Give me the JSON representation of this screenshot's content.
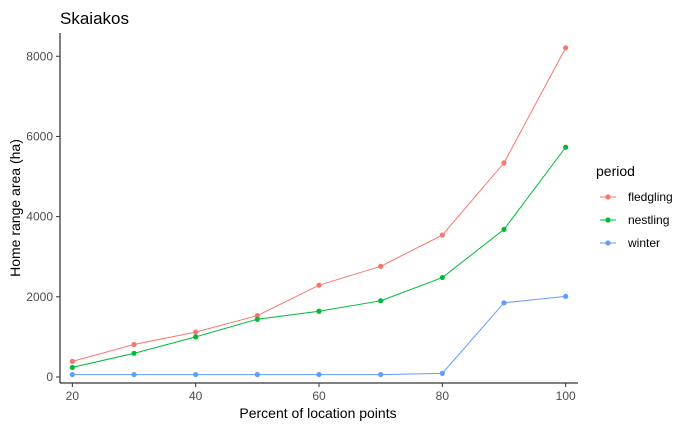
{
  "chart_data": {
    "type": "line",
    "title": "Skaiakos",
    "xlabel": "Percent of location points",
    "ylabel": "Home range area (ha)",
    "x": [
      20,
      30,
      40,
      50,
      60,
      70,
      80,
      90,
      100
    ],
    "xlim": [
      18,
      102
    ],
    "ylim": [
      -150,
      8580
    ],
    "xticks": [
      20,
      40,
      60,
      80,
      100
    ],
    "yticks": [
      0,
      2000,
      4000,
      6000,
      8000
    ],
    "grid": false,
    "legend": {
      "title": "period",
      "position": "right"
    },
    "series": [
      {
        "name": "fledgling",
        "color": "#F8766D",
        "values": [
          390,
          810,
          1120,
          1530,
          2290,
          2760,
          3540,
          5340,
          8210
        ]
      },
      {
        "name": "nestling",
        "color": "#00BA38",
        "values": [
          240,
          590,
          1000,
          1440,
          1640,
          1900,
          2480,
          3680,
          5730
        ]
      },
      {
        "name": "winter",
        "color": "#619CFF",
        "values": [
          60,
          60,
          60,
          60,
          60,
          60,
          90,
          1850,
          2010
        ]
      }
    ]
  }
}
